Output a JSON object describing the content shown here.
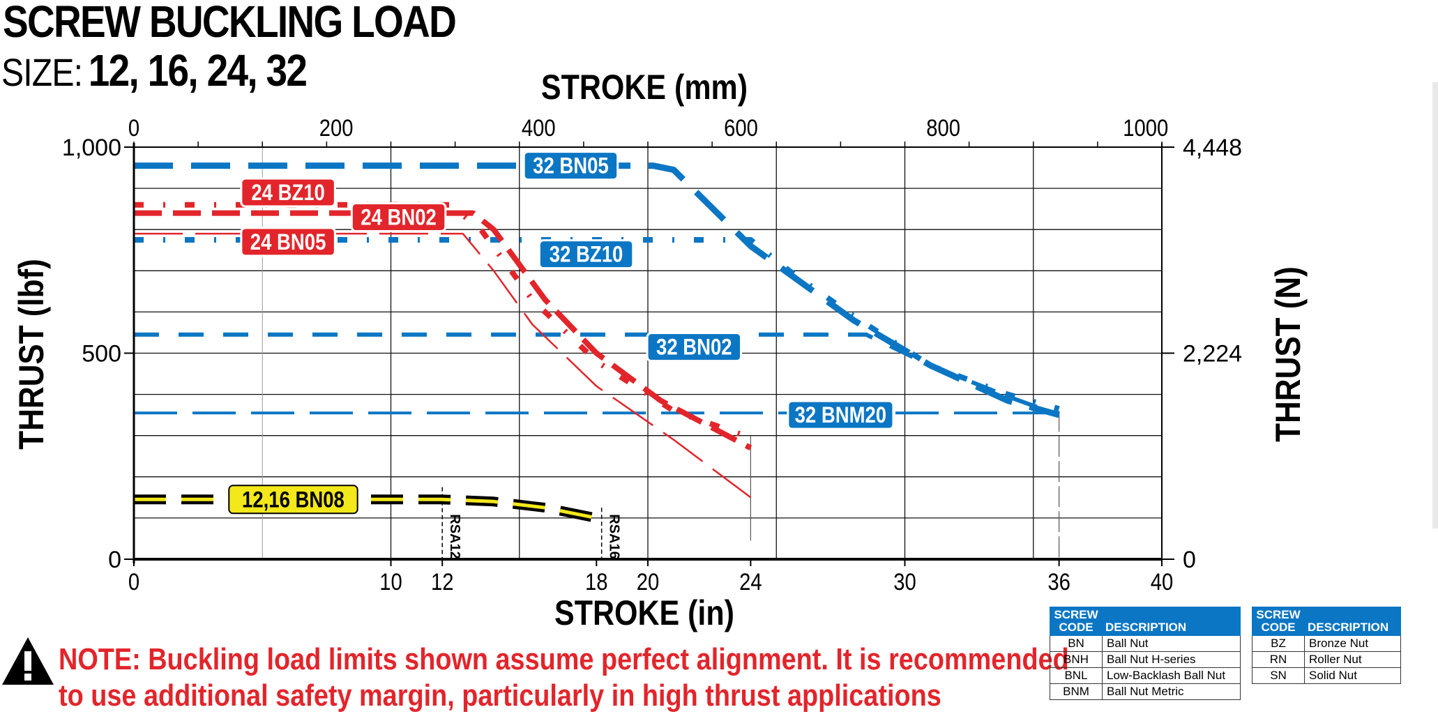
{
  "header": {
    "title": "SCREW BUCKLING LOAD",
    "size_label": "SIZE:",
    "size_values": "12, 16, 24, 32"
  },
  "chart_data": {
    "type": "line",
    "title": "SCREW BUCKLING LOAD",
    "xlabel_top": "STROKE (mm)",
    "xlabel_bottom": "STROKE (in)",
    "ylabel_left": "THRUST (lbf)",
    "ylabel_right": "THRUST (N)",
    "xlim": [
      0,
      40
    ],
    "ylim": [
      0,
      1000
    ],
    "grid": true,
    "x_ticks_bottom": [
      {
        "value": 0,
        "label": "0"
      },
      {
        "value": 10,
        "label": "10"
      },
      {
        "value": 12,
        "label": "12"
      },
      {
        "value": 18,
        "label": "18"
      },
      {
        "value": 20,
        "label": "20"
      },
      {
        "value": 24,
        "label": "24"
      },
      {
        "value": 30,
        "label": "30"
      },
      {
        "value": 36,
        "label": "36"
      },
      {
        "value": 40,
        "label": "40"
      }
    ],
    "x_ticks_top_mm": [
      {
        "value": 0,
        "label": "0"
      },
      {
        "value": 200,
        "label": "200"
      },
      {
        "value": 400,
        "label": "400"
      },
      {
        "value": 600,
        "label": "600"
      },
      {
        "value": 800,
        "label": "800"
      },
      {
        "value": 1000,
        "label": "1000"
      }
    ],
    "y_ticks_left": [
      {
        "value": 0,
        "label": "0"
      },
      {
        "value": 500,
        "label": "500"
      },
      {
        "value": 1000,
        "label": "1,000"
      }
    ],
    "y_ticks_right": [
      {
        "value": 0,
        "label": "0"
      },
      {
        "value": 500,
        "label": "2,224"
      },
      {
        "value": 1000,
        "label": "4,448"
      }
    ],
    "vertical_gridlines_in": [
      5,
      10,
      15,
      20,
      25,
      30,
      35
    ],
    "horizontal_gridlines_lbf": [
      100,
      200,
      300,
      400,
      500,
      600,
      700,
      800,
      900,
      1000
    ],
    "series": [
      {
        "name": "32 BN05",
        "label": "32 BN05",
        "color": "#0b76c4",
        "style": "long-dash-thick",
        "label_at": [
          17,
          955
        ],
        "points": [
          [
            0,
            955
          ],
          [
            20.2,
            955
          ],
          [
            21,
            945
          ],
          [
            24,
            760
          ],
          [
            28,
            580
          ],
          [
            31,
            470
          ],
          [
            34,
            385
          ],
          [
            36,
            350
          ]
        ]
      },
      {
        "name": "32 BZ10",
        "label": "32 BZ10",
        "color": "#0b76c4",
        "style": "dot-dash",
        "label_at": [
          17.6,
          740
        ],
        "points": [
          [
            0,
            775
          ],
          [
            24,
            775
          ],
          [
            25.5,
            700
          ],
          [
            28,
            590
          ],
          [
            31,
            470
          ],
          [
            34,
            400
          ],
          [
            36,
            365
          ]
        ]
      },
      {
        "name": "32 BN02",
        "label": "32 BN02",
        "color": "#0b76c4",
        "style": "dash",
        "label_at": [
          21.8,
          515
        ],
        "points": [
          [
            0,
            545
          ],
          [
            28.5,
            545
          ],
          [
            31,
            470
          ],
          [
            34,
            395
          ],
          [
            36,
            350
          ]
        ]
      },
      {
        "name": "32 BNM20",
        "label": "32 BNM20",
        "color": "#0b76c4",
        "style": "long-dash-thin",
        "label_at": [
          27.5,
          350
        ],
        "points": [
          [
            0,
            355
          ],
          [
            36,
            355
          ]
        ]
      },
      {
        "name": "24 BZ10",
        "label": "24 BZ10",
        "color": "#e2252b",
        "style": "dot-dash",
        "label_at": [
          6,
          890
        ],
        "points": [
          [
            0,
            860
          ],
          [
            12.3,
            860
          ],
          [
            13.5,
            800
          ],
          [
            15.5,
            630
          ],
          [
            18,
            480
          ],
          [
            21,
            360
          ],
          [
            24,
            295
          ]
        ]
      },
      {
        "name": "24 BN02",
        "label": "24 BN02",
        "color": "#e2252b",
        "style": "dash-thick",
        "label_at": [
          10.3,
          830
        ],
        "points": [
          [
            0,
            840
          ],
          [
            13.2,
            840
          ],
          [
            14,
            800
          ],
          [
            16,
            630
          ],
          [
            18,
            500
          ],
          [
            20.5,
            385
          ],
          [
            24,
            270
          ]
        ]
      },
      {
        "name": "24 BN05",
        "label": "24 BN05",
        "color": "#e2252b",
        "style": "solid-thin-then-dash",
        "label_at": [
          6,
          770
        ],
        "points": [
          [
            0,
            790
          ],
          [
            12.8,
            790
          ],
          [
            14,
            700
          ],
          [
            15.5,
            570
          ],
          [
            18,
            420
          ],
          [
            21,
            290
          ],
          [
            24,
            150
          ]
        ]
      },
      {
        "name": "12,16 BN08",
        "label": "12,16 BN08",
        "color": "#000000",
        "style": "dash-yellow-core",
        "label_at": [
          6.2,
          145
        ],
        "points": [
          [
            0,
            145
          ],
          [
            12,
            145
          ],
          [
            14,
            140
          ],
          [
            16,
            125
          ],
          [
            18,
            100
          ]
        ]
      }
    ],
    "annotations": [
      {
        "text": "RSA12",
        "x": 12,
        "y": 55
      },
      {
        "text": "RSA16",
        "x": 18.2,
        "y": 55
      }
    ]
  },
  "note": {
    "line1": "NOTE: Buckling load limits shown assume perfect alignment. It is recommended",
    "line2": "to use additional safety margin, particularly in high thrust applications"
  },
  "legend_left": {
    "header_code": "SCREW CODE",
    "header_desc": "DESCRIPTION",
    "rows": [
      {
        "code": "BN",
        "desc": "Ball Nut"
      },
      {
        "code": "BNH",
        "desc": "Ball Nut H-series"
      },
      {
        "code": "BNL",
        "desc": "Low-Backlash Ball Nut"
      },
      {
        "code": "BNM",
        "desc": "Ball Nut Metric"
      }
    ]
  },
  "legend_right": {
    "header_code": "SCREW CODE",
    "header_desc": "DESCRIPTION",
    "rows": [
      {
        "code": "BZ",
        "desc": "Bronze Nut"
      },
      {
        "code": "RN",
        "desc": "Roller Nut"
      },
      {
        "code": "SN",
        "desc": "Solid Nut"
      }
    ]
  }
}
